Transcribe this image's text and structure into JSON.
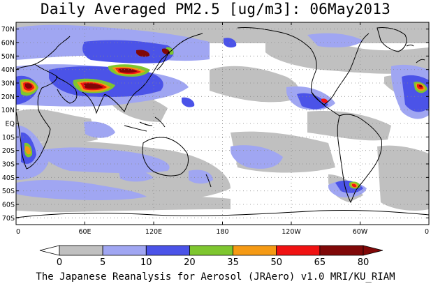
{
  "title": "Daily Averaged PM2.5 [ug/m3]: 06May2013",
  "caption": "The Japanese Reanalysis for Aerosol (JRAero) v1.0 MRI/KU_RIAM",
  "map": {
    "projection": "equirectangular",
    "lon_range": [
      0,
      360
    ],
    "lat_range": [
      -75,
      75
    ],
    "grid": "dotted",
    "lon_ticks": [
      "0",
      "60E",
      "120E",
      "180",
      "120W",
      "60W",
      "0"
    ],
    "lat_ticks": [
      "70N",
      "60N",
      "50N",
      "40N",
      "30N",
      "20N",
      "10N",
      "EQ",
      "10S",
      "20S",
      "30S",
      "40S",
      "50S",
      "60S",
      "70S"
    ]
  },
  "colorbar": {
    "levels": [
      "0",
      "5",
      "10",
      "20",
      "35",
      "50",
      "65",
      "80"
    ],
    "colors": [
      "#ffffff",
      "#c0c0c0",
      "#a0a6f2",
      "#4b53e8",
      "#7ec62f",
      "#f59a14",
      "#f01212",
      "#800808"
    ]
  }
}
